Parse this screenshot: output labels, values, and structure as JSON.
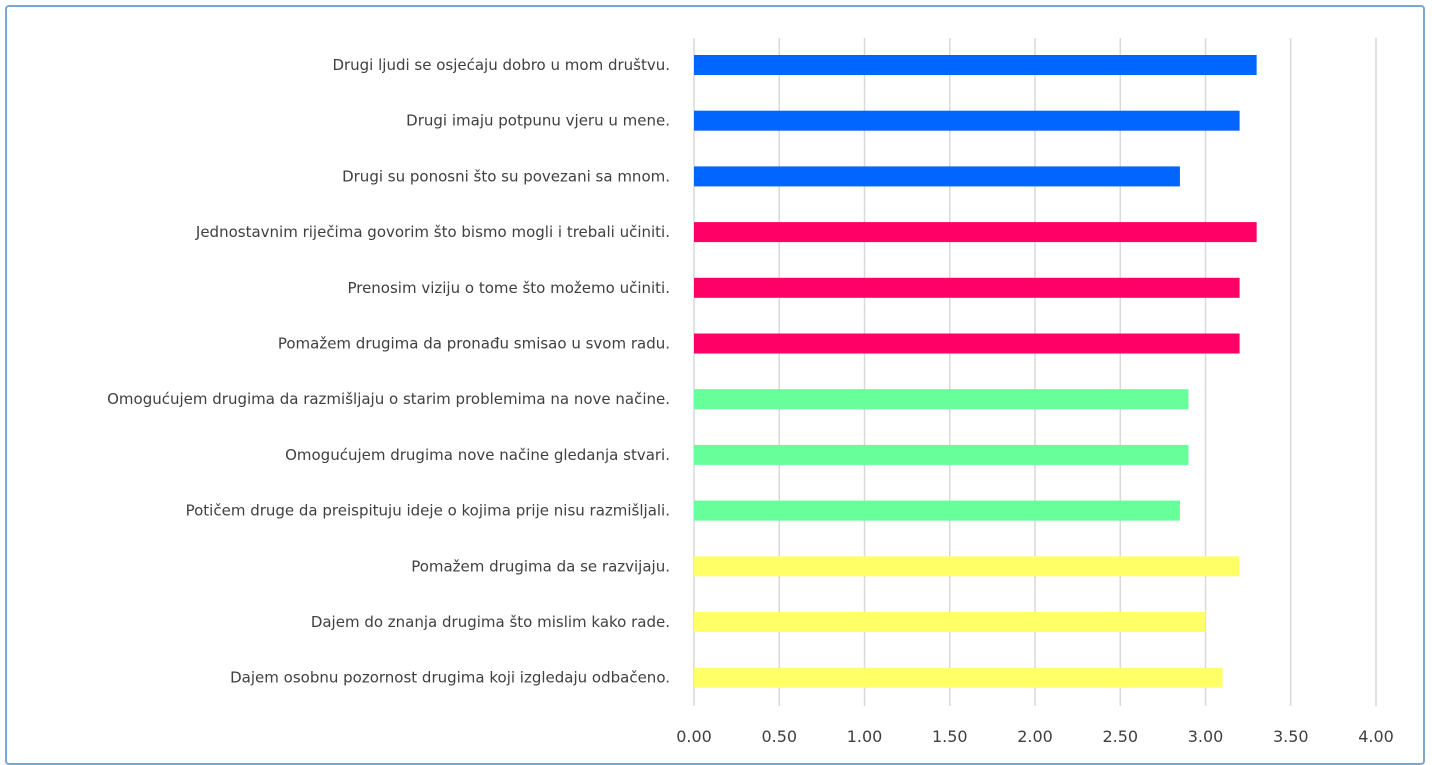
{
  "chart_data": {
    "type": "bar",
    "orientation": "horizontal",
    "categories": [
      "Drugi ljudi se osjećaju  dobro u mom društvu.",
      "Drugi imaju potpunu vjeru u mene.",
      "Drugi su ponosni što su povezani sa mnom.",
      "Jednostavnim riječima govorim što bismo mogli i trebali  učiniti.",
      "Prenosim viziju o tome što možemo učiniti.",
      "Pomažem drugima da pronađu smisao u svom radu.",
      "Omogućujem drugima da razmišljaju  o starim problemima na nove načine.",
      "Omogućujem drugima nove načine gledanja stvari.",
      "Potičem druge da preispituju ideje o kojima prije nisu razmišljali.",
      "Pomažem drugima da se razvijaju.",
      "Dajem do znanja drugima što mislim kako rade.",
      "Dajem osobnu pozornost drugima koji izgledaju odbačeno."
    ],
    "values": [
      3.3,
      3.2,
      2.85,
      3.3,
      3.2,
      3.2,
      2.9,
      2.9,
      2.85,
      3.2,
      3.0,
      3.1
    ],
    "bar_colors": [
      "#0066ff",
      "#0066ff",
      "#0066ff",
      "#ff0066",
      "#ff0066",
      "#ff0066",
      "#66ff99",
      "#66ff99",
      "#66ff99",
      "#ffff66",
      "#ffff66",
      "#ffff66"
    ],
    "x_ticks": [
      "0.00",
      "0.50",
      "1.00",
      "1.50",
      "2.00",
      "2.50",
      "3.00",
      "3.50",
      "4.00"
    ],
    "xlim": [
      0,
      4
    ],
    "grid": true,
    "title": "",
    "xlabel": "",
    "ylabel": ""
  }
}
